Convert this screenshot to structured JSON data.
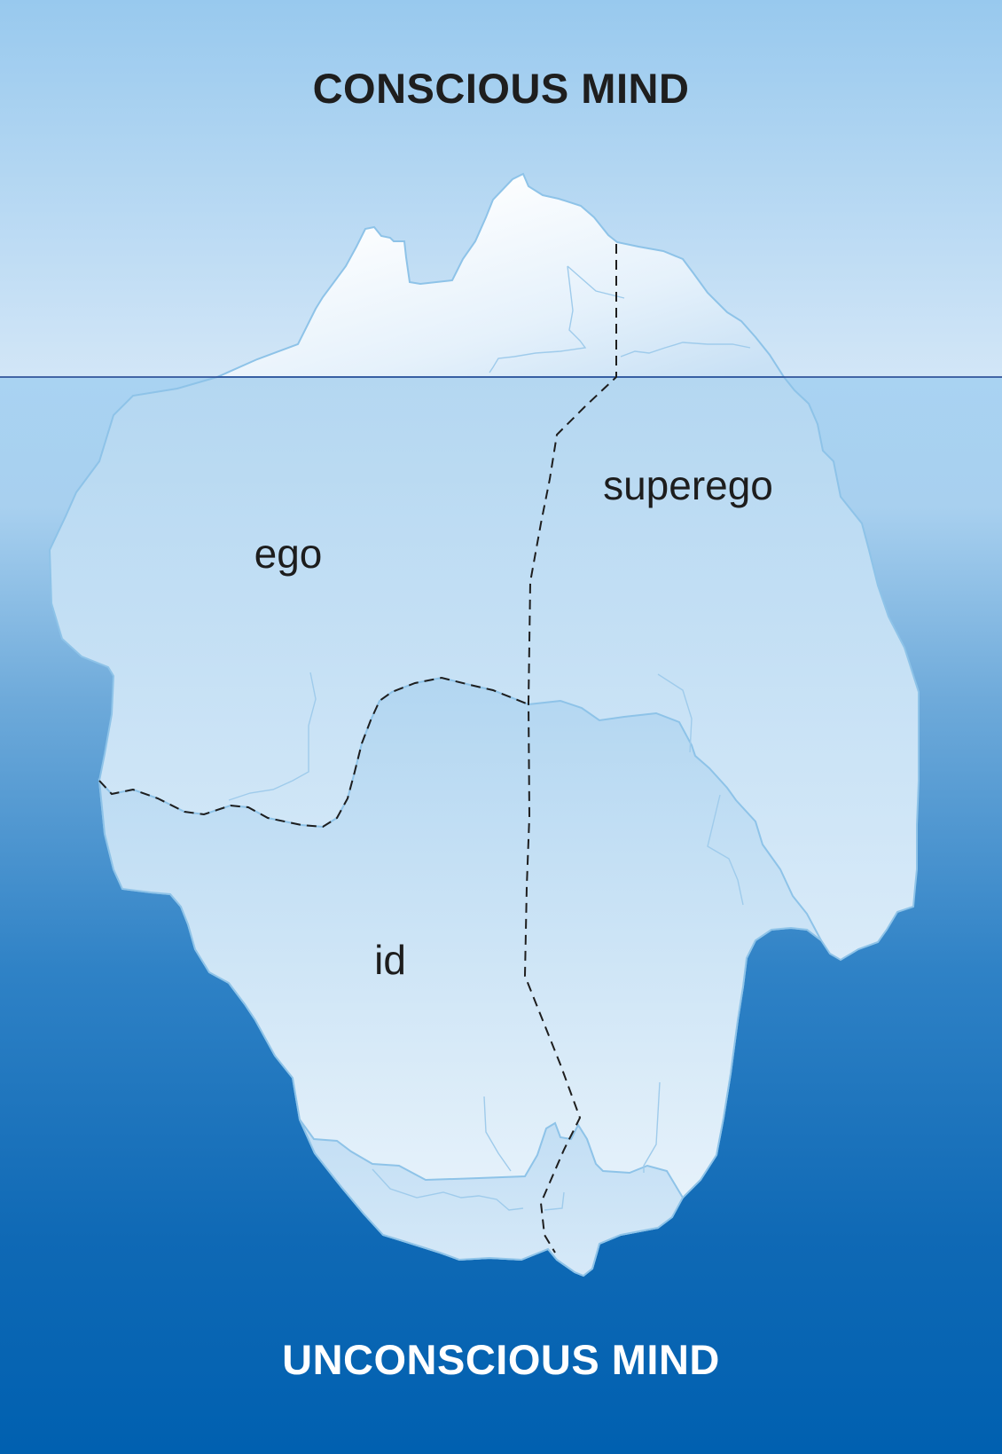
{
  "titles": {
    "top": "CONSCIOUS MIND",
    "bottom": "UNCONSCIOUS MIND"
  },
  "regions": {
    "ego": "ego",
    "superego": "superego",
    "id": "id"
  },
  "colors": {
    "sky_top": "#98c9ee",
    "sky_bottom": "#cfe4f6",
    "water_top": "#a9d2f1",
    "water_bottom": "#0a63b1",
    "ice_light": "#f3f8fd",
    "ice_mid": "#c9e2f5",
    "ice_edge": "#8ec3e8",
    "waterline": "#1a3e8c"
  }
}
